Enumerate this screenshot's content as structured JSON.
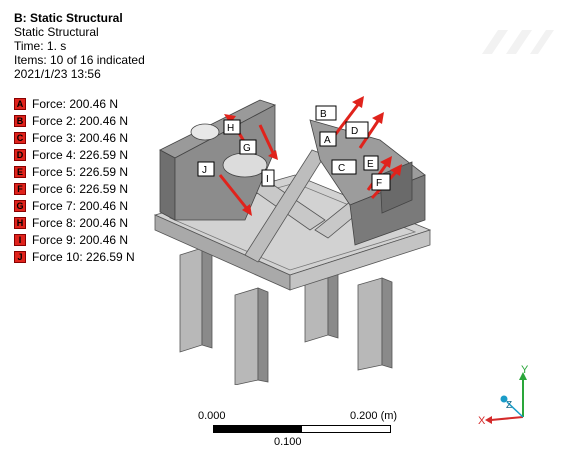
{
  "header": {
    "title": "B: Static Structural",
    "type": "Static Structural",
    "time": "Time: 1. s",
    "items": "Items: 10 of 16 indicated",
    "datetime": "2021/1/23 13:56"
  },
  "legend": [
    {
      "key": "A",
      "label": "Force: 200.46 N"
    },
    {
      "key": "B",
      "label": "Force 2: 200.46 N"
    },
    {
      "key": "C",
      "label": "Force 3: 200.46 N"
    },
    {
      "key": "D",
      "label": "Force 4: 226.59 N"
    },
    {
      "key": "E",
      "label": "Force 5: 226.59 N"
    },
    {
      "key": "F",
      "label": "Force 6: 226.59 N"
    },
    {
      "key": "G",
      "label": "Force 7: 200.46 N"
    },
    {
      "key": "H",
      "label": "Force 8: 200.46 N"
    },
    {
      "key": "I",
      "label": "Force 9: 200.46 N"
    },
    {
      "key": "J",
      "label": "Force 10: 226.59 N"
    }
  ],
  "scale": {
    "left": "0.000",
    "right": "0.200 (m)",
    "mid": "0.100"
  },
  "triad": {
    "y": "Y",
    "z": "Z",
    "x": "X"
  },
  "colors": {
    "force": "#e0231c",
    "y_axis": "#2aa63a",
    "x_axis": "#d42a2a",
    "z_axis": "#1a9cc8"
  }
}
